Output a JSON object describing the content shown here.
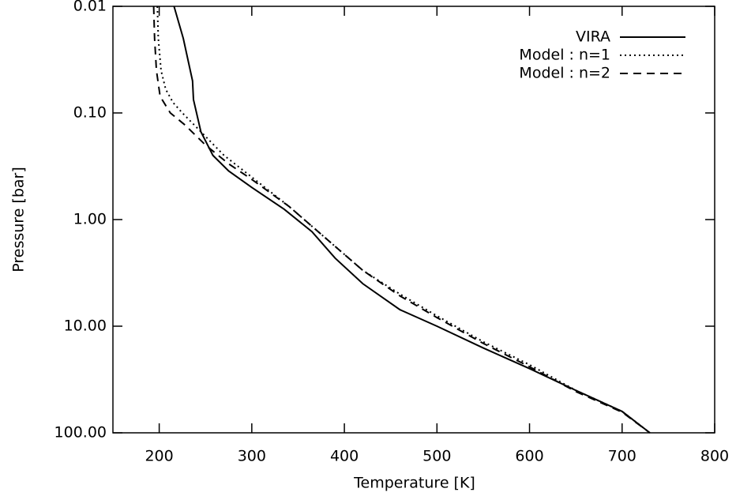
{
  "chart_data": {
    "type": "line",
    "xlabel": "Temperature [K]",
    "ylabel": "Pressure [bar]",
    "xlim": [
      150,
      800
    ],
    "xticks": [
      200,
      300,
      400,
      500,
      600,
      700,
      800
    ],
    "ylim": [
      0.01,
      100
    ],
    "ylog": true,
    "yinverted": true,
    "yticks": [
      0.01,
      {
        "value": 0.1,
        "label": "0.10"
      },
      {
        "value": 1,
        "label": "1.00"
      },
      {
        "value": 10,
        "label": "10.00"
      },
      {
        "value": 100,
        "label": "100.00"
      }
    ],
    "legend": "upper right",
    "series": [
      {
        "name": "VIRA",
        "color": "#000000",
        "dash": "solid",
        "x": [
          216,
          226,
          236,
          237,
          245,
          258,
          275,
          300,
          335,
          365,
          390,
          420,
          460,
          500,
          550,
          600,
          650,
          700,
          730
        ],
        "values": [
          0.01,
          0.02,
          0.05,
          0.075,
          0.15,
          0.25,
          0.35,
          0.5,
          0.8,
          1.3,
          2.3,
          4,
          7,
          10,
          16,
          25,
          40,
          63,
          100
        ]
      },
      {
        "name": "Model : n=1",
        "color": "#000000",
        "dash": "dotted",
        "x": [
          198,
          199,
          202,
          207,
          215,
          225,
          245,
          270,
          300,
          340,
          380,
          420,
          460,
          500,
          550,
          600,
          650,
          700,
          730
        ],
        "values": [
          0.01,
          0.02,
          0.04,
          0.06,
          0.08,
          0.1,
          0.15,
          0.25,
          0.4,
          0.75,
          1.5,
          3,
          5,
          8,
          14,
          23,
          40,
          63,
          100
        ]
      },
      {
        "name": "Model : n=2",
        "color": "#000000",
        "dash": "dashed",
        "x": [
          194,
          195,
          197,
          201,
          212,
          228,
          250,
          275,
          300,
          340,
          380,
          420,
          460,
          500,
          550,
          600,
          650,
          700,
          730
        ],
        "values": [
          0.01,
          0.02,
          0.04,
          0.07,
          0.1,
          0.13,
          0.2,
          0.3,
          0.42,
          0.75,
          1.5,
          3,
          5.2,
          8.3,
          14.5,
          24,
          41,
          64,
          100
        ]
      }
    ]
  }
}
